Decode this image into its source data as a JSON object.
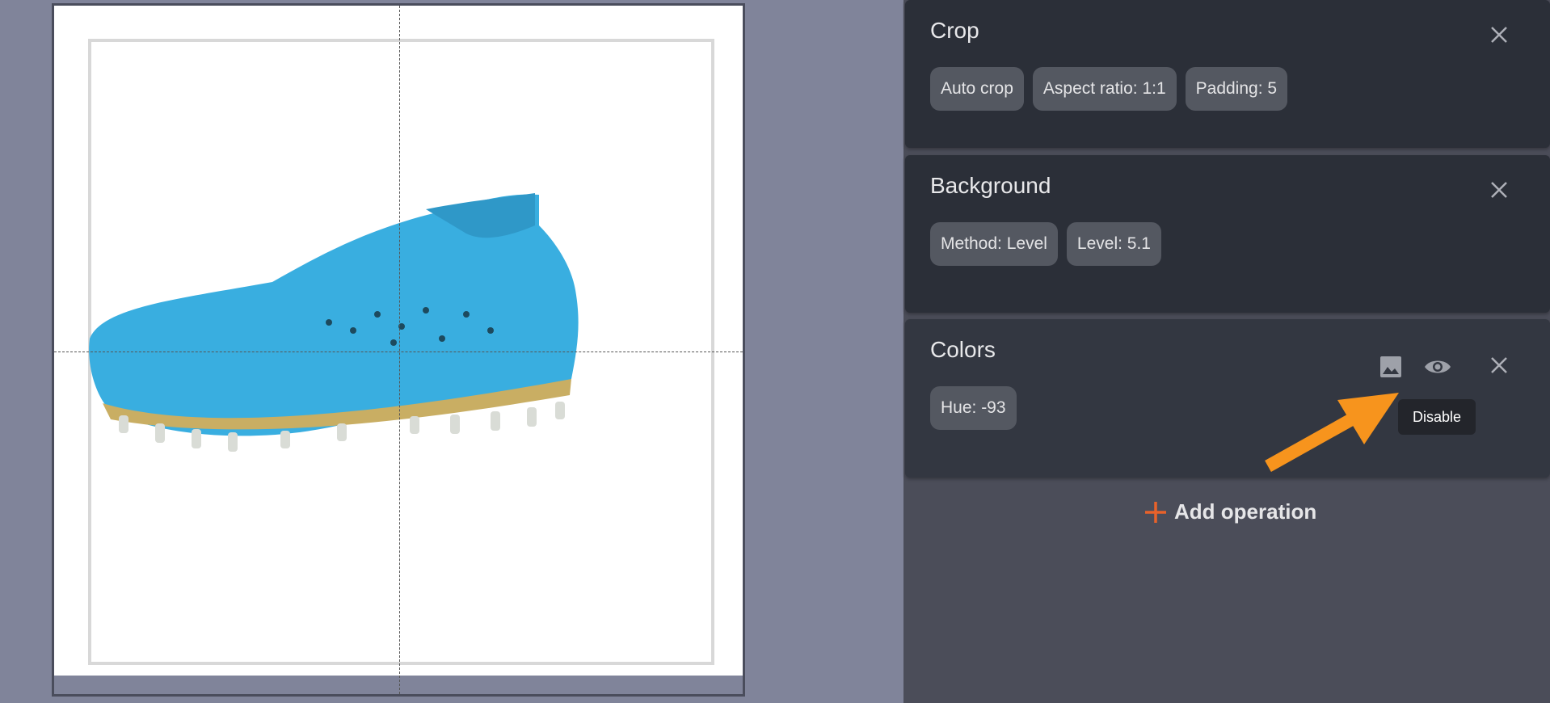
{
  "operations": [
    {
      "title": "Crop",
      "chips": [
        "Auto crop",
        "Aspect ratio: 1:1",
        "Padding: 5"
      ]
    },
    {
      "title": "Background",
      "chips": [
        "Method: Level",
        "Level: 5.1"
      ]
    },
    {
      "title": "Colors",
      "chips": [
        "Hue: -93"
      ]
    }
  ],
  "tooltip": "Disable",
  "add_operation": "Add operation",
  "colors": {
    "accent": "#e8622a",
    "arrow": "#f7941d",
    "card": "#2b2f38"
  }
}
